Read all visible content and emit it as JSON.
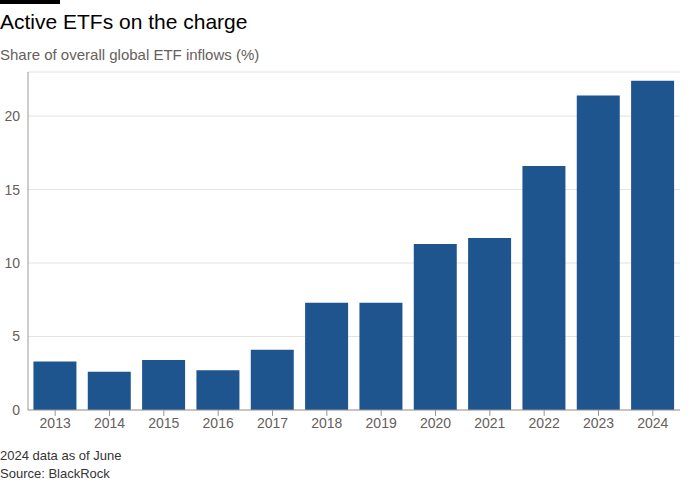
{
  "chart_data": {
    "type": "bar",
    "title": "Active ETFs on the charge",
    "subtitle": "Share of overall global ETF inflows (%)",
    "categories": [
      "2013",
      "2014",
      "2015",
      "2016",
      "2017",
      "2018",
      "2019",
      "2020",
      "2021",
      "2022",
      "2023",
      "2024"
    ],
    "values": [
      3.3,
      2.6,
      3.4,
      2.7,
      4.1,
      7.3,
      7.3,
      11.3,
      11.7,
      16.6,
      21.4,
      22.4
    ],
    "color": "#1f558f",
    "ylim": [
      0,
      23
    ],
    "yticks": [
      0,
      5,
      10,
      15,
      20
    ],
    "grid": true,
    "footnote": "2024 data as of June",
    "source": "Source: BlackRock"
  }
}
